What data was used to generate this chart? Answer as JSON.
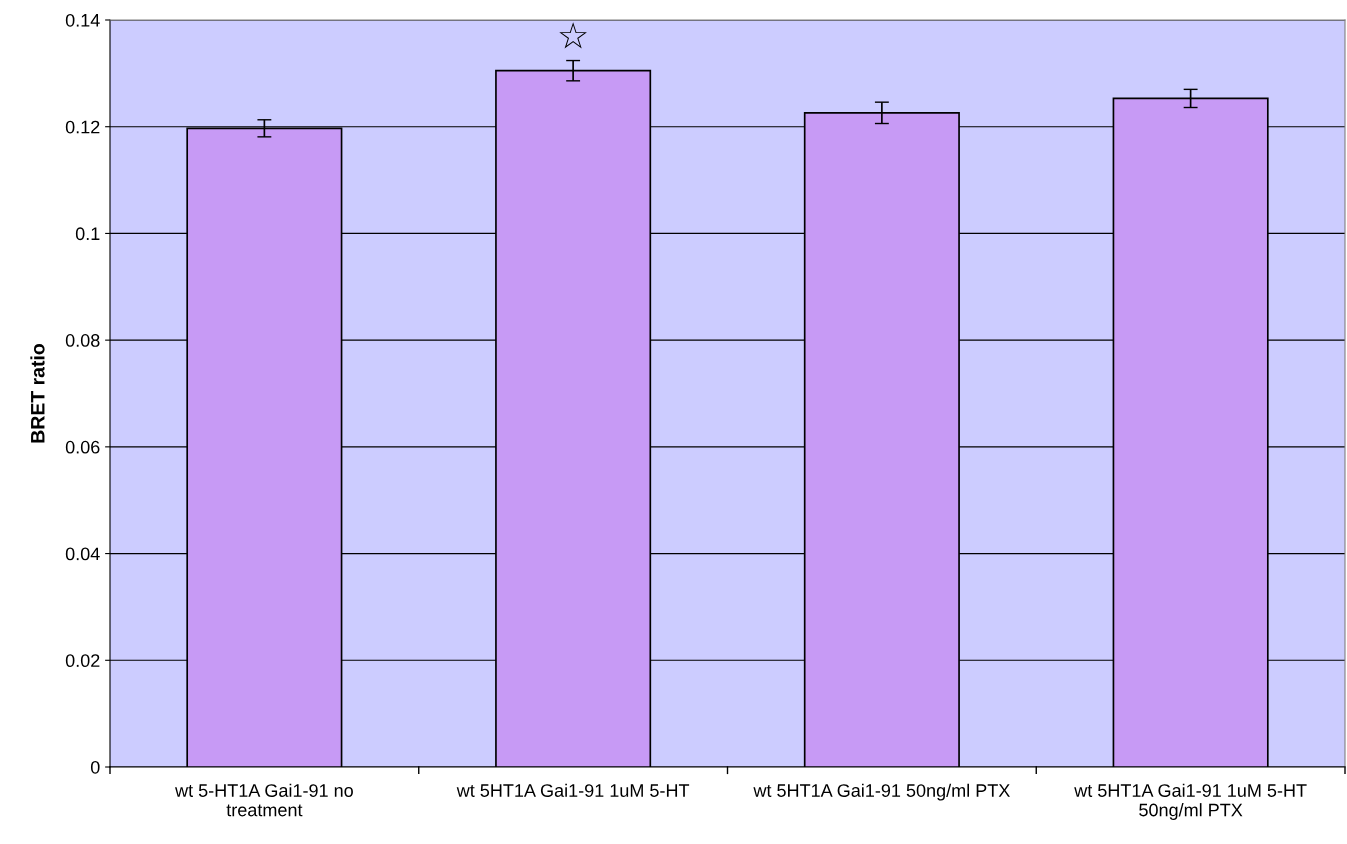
{
  "chart_data": {
    "type": "bar",
    "ylabel": "BRET ratio",
    "categories": [
      "wt 5-HT1A Gai1-91 no treatment",
      "wt 5HT1A Gai1-91 1uM 5-HT",
      "wt 5HT1A Gai1-91 50ng/ml PTX",
      "wt 5HT1A Gai1-91 1uM 5-HT 50ng/ml PTX"
    ],
    "values": [
      0.1197,
      0.1305,
      0.1226,
      0.1253
    ],
    "errors": [
      0.0016,
      0.0019,
      0.002,
      0.0017
    ],
    "color": "#c79af5",
    "ylim": [
      0,
      0.14
    ],
    "yticks": [
      0,
      0.02,
      0.04,
      0.06,
      0.08,
      0.1,
      0.12,
      0.14
    ],
    "grid": "y",
    "annotations": [
      "☆"
    ]
  }
}
